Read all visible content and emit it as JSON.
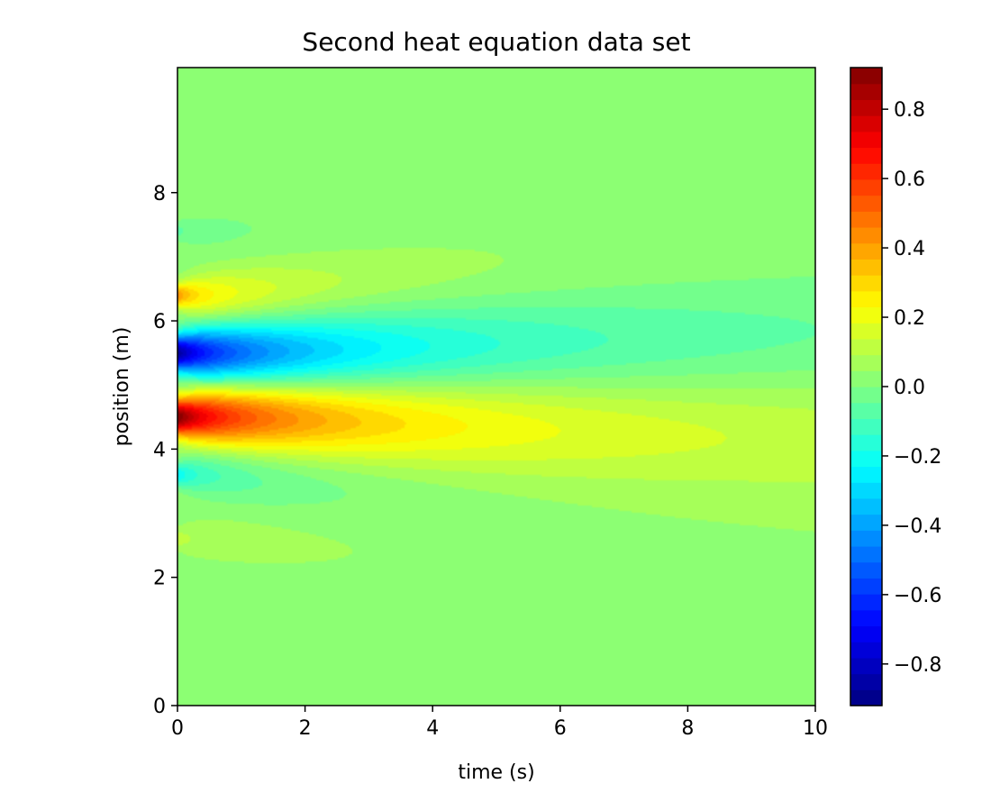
{
  "chart_data": {
    "type": "heatmap",
    "title": "Second heat equation data set",
    "xlabel": "time (s)",
    "ylabel": "position (m)",
    "xlim": [
      0,
      10
    ],
    "ylim": [
      0,
      9.95
    ],
    "x_ticks": [
      0,
      2,
      4,
      6,
      8,
      10
    ],
    "x_tick_labels": [
      "0",
      "2",
      "4",
      "6",
      "8",
      "10"
    ],
    "y_ticks": [
      0,
      2,
      4,
      6,
      8
    ],
    "y_tick_labels": [
      "0",
      "2",
      "4",
      "6",
      "8"
    ],
    "colormap": "jet",
    "color_levels": 40,
    "colorbar": {
      "vmin": -0.92,
      "vmax": 0.92,
      "ticks": [
        -0.8,
        -0.6,
        -0.4,
        -0.2,
        0.0,
        0.2,
        0.4,
        0.6,
        0.8
      ],
      "tick_labels": [
        "−0.8",
        "−0.6",
        "−0.4",
        "−0.2",
        "0.0",
        "0.2",
        "0.4",
        "0.6",
        "0.8"
      ]
    },
    "grid": false,
    "features": [
      {
        "position": 4.5,
        "peak_value": 0.92,
        "width": 0.2
      },
      {
        "position": 5.5,
        "peak_value": -0.92,
        "width": 0.2
      },
      {
        "position": 3.6,
        "peak_value": -0.28,
        "width": 0.12
      },
      {
        "position": 6.4,
        "peak_value": 0.42,
        "width": 0.12
      },
      {
        "position": 2.6,
        "peak_value": 0.1,
        "width": 0.1
      },
      {
        "position": 7.4,
        "peak_value": -0.1,
        "width": 0.1
      }
    ]
  }
}
